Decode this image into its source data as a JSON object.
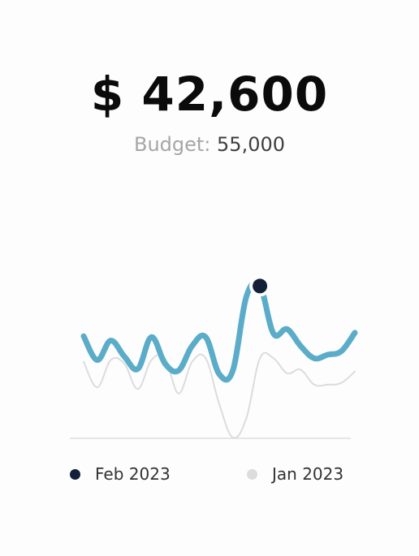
{
  "header": {
    "amount": "$ 42,600",
    "budget_label": "Budget:",
    "budget_value": "55,000"
  },
  "chart_data": {
    "type": "line",
    "x": [
      0,
      1,
      2,
      3,
      4,
      5,
      6,
      7,
      8,
      9,
      10,
      11,
      12,
      13,
      14,
      15,
      16,
      17,
      18,
      19,
      20
    ],
    "series": [
      {
        "name": "Feb 2023",
        "color": "#5aacc8",
        "values": [
          115,
          88,
          110,
          92,
          78,
          114,
          84,
          76,
          104,
          114,
          72,
          76,
          160,
          172,
          118,
          123,
          104,
          90,
          94,
          98,
          119
        ]
      },
      {
        "name": "Jan 2023",
        "color": "#dcdcdc",
        "values": [
          86,
          57,
          88,
          84,
          55,
          88,
          90,
          50,
          86,
          90,
          38,
          0,
          22,
          90,
          90,
          73,
          77,
          60,
          60,
          62,
          75
        ]
      }
    ],
    "highlight": {
      "series": "Feb 2023",
      "x": 13,
      "y": 172,
      "color": "#142038"
    },
    "legend": "bottom",
    "grid": false
  }
}
